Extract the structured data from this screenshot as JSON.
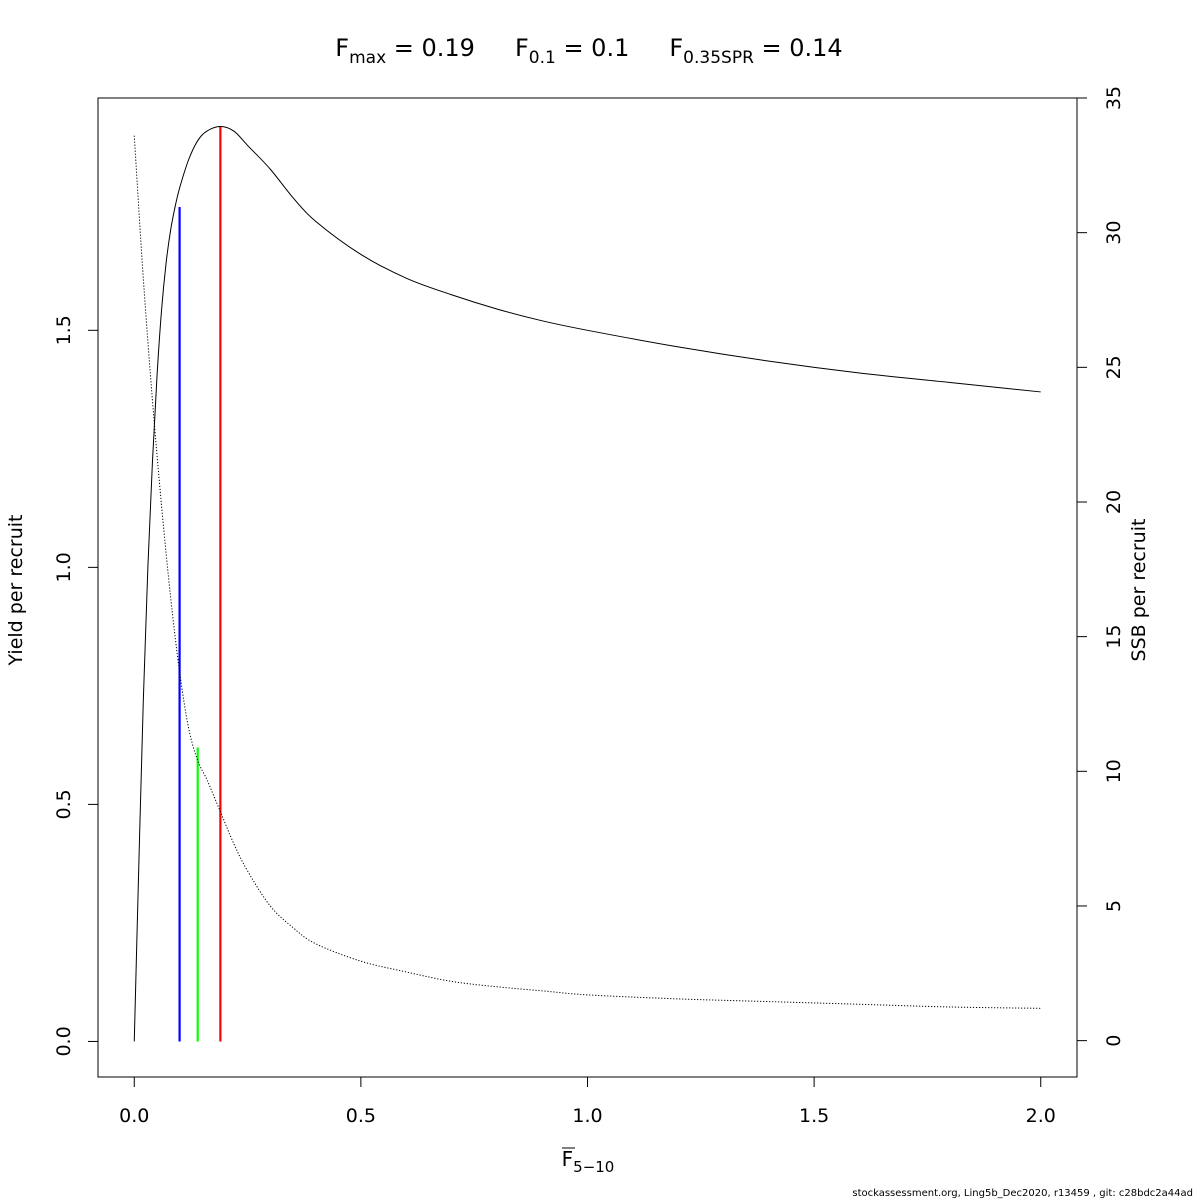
{
  "chart_data": {
    "type": "line",
    "title_parts": [
      {
        "base": "F",
        "sub": "max",
        "eq": " = 0.19"
      },
      {
        "base": "F",
        "sub": "0.1",
        "eq": " = 0.1"
      },
      {
        "base": "F",
        "sub": "0.35SPR",
        "eq": " = 0.14"
      }
    ],
    "xlabel": {
      "base": "F",
      "sub": "5−10",
      "overbar": true
    },
    "ylabel_left": "Yield per recruit",
    "ylabel_right": "SSB per recruit",
    "xlim": [
      -0.08,
      2.08
    ],
    "ylim_left": [
      -0.075,
      1.99
    ],
    "ylim_right": [
      -1.35,
      35.0
    ],
    "x_ticks": [
      0.0,
      0.5,
      1.0,
      1.5,
      2.0
    ],
    "x_tick_labels": [
      "0.0",
      "0.5",
      "1.0",
      "1.5",
      "2.0"
    ],
    "y_left_ticks": [
      0.0,
      0.5,
      1.0,
      1.5
    ],
    "y_left_tick_labels": [
      "0.0",
      "0.5",
      "1.0",
      "1.5"
    ],
    "y_right_ticks": [
      0,
      5,
      10,
      15,
      20,
      25,
      30,
      35
    ],
    "y_right_tick_labels": [
      "0",
      "5",
      "10",
      "15",
      "20",
      "25",
      "30",
      "35"
    ],
    "series": [
      {
        "axis": "left",
        "style": "solid",
        "color": "#000000",
        "x": [
          0,
          0.01,
          0.02,
          0.03,
          0.04,
          0.05,
          0.06,
          0.07,
          0.08,
          0.09,
          0.1,
          0.12,
          0.14,
          0.16,
          0.19,
          0.22,
          0.25,
          0.3,
          0.35,
          0.4,
          0.5,
          0.6,
          0.7,
          0.8,
          0.9,
          1.0,
          1.2,
          1.4,
          1.6,
          1.8,
          2.0
        ],
        "y": [
          0,
          0.37,
          0.72,
          1.0,
          1.22,
          1.4,
          1.54,
          1.64,
          1.71,
          1.76,
          1.8,
          1.86,
          1.9,
          1.92,
          1.93,
          1.92,
          1.89,
          1.84,
          1.78,
          1.73,
          1.66,
          1.61,
          1.575,
          1.545,
          1.52,
          1.5,
          1.465,
          1.435,
          1.41,
          1.39,
          1.37
        ]
      },
      {
        "axis": "right",
        "style": "dotted",
        "color": "#000000",
        "x": [
          0,
          0.02,
          0.04,
          0.06,
          0.08,
          0.1,
          0.12,
          0.14,
          0.16,
          0.19,
          0.22,
          0.25,
          0.3,
          0.35,
          0.4,
          0.5,
          0.6,
          0.7,
          0.8,
          0.9,
          1.0,
          1.2,
          1.4,
          1.6,
          1.8,
          2.0
        ],
        "y": [
          33.6,
          28.3,
          23.8,
          19.9,
          16.5,
          13.7,
          11.6,
          10.4,
          9.7,
          8.5,
          7.3,
          6.3,
          5.0,
          4.2,
          3.6,
          2.95,
          2.55,
          2.2,
          2.0,
          1.85,
          1.7,
          1.55,
          1.45,
          1.35,
          1.25,
          1.2
        ]
      }
    ],
    "reference_lines": [
      {
        "name": "F0.1",
        "x": 0.1,
        "y": 1.76,
        "color": "#0000ff"
      },
      {
        "name": "F0.35SPR",
        "x": 0.14,
        "y": 0.62,
        "color": "#00ff00"
      },
      {
        "name": "Fmax",
        "x": 0.19,
        "y": 1.93,
        "color": "#ff0000"
      }
    ],
    "grid": false,
    "legend": "none"
  },
  "footer": "stockassessment.org, Ling5b_Dec2020, r13459 , git: c28bdc2a44ad"
}
